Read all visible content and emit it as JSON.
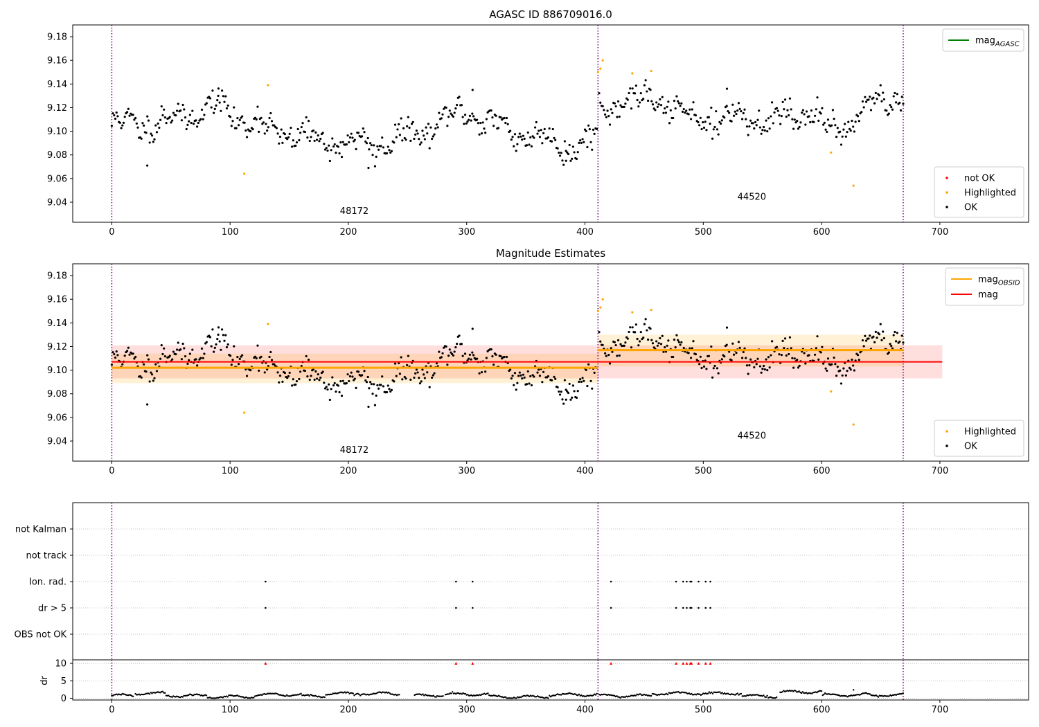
{
  "chart_data": [
    {
      "type": "scatter",
      "title": "AGASC ID 886709016.0",
      "xlabel": "",
      "ylabel": "",
      "xlim": [
        -33,
        775
      ],
      "ylim": [
        9.023,
        9.19
      ],
      "xticks": [
        0,
        100,
        200,
        300,
        400,
        500,
        600,
        700
      ],
      "xtick_labels": [
        "0",
        "100",
        "200",
        "300",
        "400",
        "500",
        "600",
        "700"
      ],
      "yticks": [
        9.04,
        9.06,
        9.08,
        9.1,
        9.12,
        9.14,
        9.16,
        9.18
      ],
      "ytick_labels": [
        "9.04",
        "9.06",
        "9.08",
        "9.10",
        "9.12",
        "9.14",
        "9.16",
        "9.18"
      ],
      "grid": false,
      "obs_boundaries": [
        0,
        411,
        669
      ],
      "obs_labels": [
        {
          "text": "48172",
          "x": 205,
          "y": 9.03
        },
        {
          "text": "44520",
          "x": 541,
          "y": 9.042
        }
      ],
      "legend_lines": [
        {
          "label": "mag",
          "sub": "AGASC",
          "color": "#008000"
        }
      ],
      "legend_lines_placement": "upper right",
      "legend_points": [
        {
          "label": "not OK",
          "color": "#ff0000"
        },
        {
          "label": "Highlighted",
          "color": "#ffa500"
        },
        {
          "label": "OK",
          "color": "#000000"
        }
      ],
      "legend_points_placement": "lower right",
      "ok_series": {
        "name": "OK",
        "color": "#000000",
        "segments": [
          {
            "x0": 0,
            "x1": 410,
            "n": 410,
            "anchors": [
              [
                0,
                9.106
              ],
              [
                40,
                9.107
              ],
              [
                90,
                9.122
              ],
              [
                110,
                9.11
              ],
              [
                140,
                9.1
              ],
              [
                180,
                9.092
              ],
              [
                220,
                9.088
              ],
              [
                260,
                9.098
              ],
              [
                300,
                9.118
              ],
              [
                330,
                9.102
              ],
              [
                370,
                9.093
              ],
              [
                390,
                9.085
              ],
              [
                410,
                9.097
              ]
            ],
            "sd": 0.009,
            "seed": 11
          },
          {
            "x0": 412,
            "x1": 669,
            "n": 256,
            "anchors": [
              [
                412,
                9.118
              ],
              [
                440,
                9.125
              ],
              [
                460,
                9.128
              ],
              [
                480,
                9.115
              ],
              [
                520,
                9.11
              ],
              [
                560,
                9.11
              ],
              [
                590,
                9.118
              ],
              [
                605,
                9.098
              ],
              [
                615,
                9.103
              ],
              [
                640,
                9.12
              ],
              [
                669,
                9.128
              ]
            ],
            "sd": 0.009,
            "seed": 29
          }
        ],
        "extra_points": [
          [
            30,
            9.071
          ],
          [
            217,
            9.069
          ],
          [
            384,
            9.075
          ],
          [
            305,
            9.135
          ],
          [
            90,
            9.13
          ],
          [
            520,
            9.136
          ]
        ]
      },
      "highlighted_points": [
        [
          112,
          9.064
        ],
        [
          132,
          9.139
        ],
        [
          411,
          9.15
        ],
        [
          413,
          9.153
        ],
        [
          415,
          9.16
        ],
        [
          440,
          9.149
        ],
        [
          456,
          9.151
        ],
        [
          608,
          9.082
        ],
        [
          627,
          9.054
        ]
      ]
    },
    {
      "type": "scatter",
      "title": "Magnitude Estimates",
      "xlabel": "",
      "ylabel": "",
      "xlim": [
        -33,
        775
      ],
      "ylim": [
        9.023,
        9.19
      ],
      "xticks": [
        0,
        100,
        200,
        300,
        400,
        500,
        600,
        700
      ],
      "xtick_labels": [
        "0",
        "100",
        "200",
        "300",
        "400",
        "500",
        "600",
        "700"
      ],
      "yticks": [
        9.04,
        9.06,
        9.08,
        9.1,
        9.12,
        9.14,
        9.16,
        9.18
      ],
      "ytick_labels": [
        "9.04",
        "9.06",
        "9.08",
        "9.10",
        "9.12",
        "9.14",
        "9.16",
        "9.18"
      ],
      "grid": false,
      "obs_boundaries": [
        0,
        411,
        669
      ],
      "obs_labels": [
        {
          "text": "48172",
          "x": 205,
          "y": 9.03
        },
        {
          "text": "44520",
          "x": 541,
          "y": 9.042
        }
      ],
      "mag": {
        "value": 9.107,
        "band": [
          9.093,
          9.121
        ],
        "x": [
          0,
          702
        ],
        "color": "#ff0000"
      },
      "mag_obsid": [
        {
          "value": 9.102,
          "band": [
            9.089,
            9.114
          ],
          "x": [
            0,
            411
          ]
        },
        {
          "value": 9.117,
          "band": [
            9.103,
            9.13
          ],
          "x": [
            411,
            669
          ]
        }
      ],
      "mag_obsid_color": "#ffa500",
      "legend_lines": [
        {
          "label": "mag",
          "sub": "OBSID",
          "color": "#ffa500"
        },
        {
          "label": "mag",
          "sub": "",
          "color": "#ff0000"
        }
      ],
      "legend_lines_placement": "upper right",
      "legend_points": [
        {
          "label": "Highlighted",
          "color": "#ffa500"
        },
        {
          "label": "OK",
          "color": "#000000"
        }
      ],
      "legend_points_placement": "lower right",
      "same_points_as_panel": 0
    },
    {
      "type": "scatter",
      "title": "",
      "xlim": [
        -33,
        775
      ],
      "flag_rows": [
        "not Kalman",
        "not track",
        "Ion. rad.",
        "dr > 5",
        "OBS not OK"
      ],
      "flag_points": {
        "Ion. rad.": [
          130,
          291,
          305,
          422,
          477,
          483,
          486,
          489,
          490,
          496,
          502,
          506
        ],
        "dr > 5": [
          130,
          291,
          305,
          422,
          477,
          483,
          486,
          489,
          490,
          496,
          502,
          506
        ]
      },
      "obs_boundaries": [
        0,
        411,
        669
      ],
      "grid": true
    },
    {
      "type": "scatter",
      "xlabel": "",
      "ylabel": "dr",
      "xlim": [
        -33,
        775
      ],
      "ylim": [
        -0.5,
        11
      ],
      "xticks": [
        0,
        100,
        200,
        300,
        400,
        500,
        600,
        700
      ],
      "xtick_labels": [
        "0",
        "100",
        "200",
        "300",
        "400",
        "500",
        "600",
        "700"
      ],
      "yticks": [
        0,
        5,
        10
      ],
      "ytick_labels": [
        "0",
        "5",
        "10"
      ],
      "grid": true,
      "obs_boundaries": [
        0,
        411,
        669
      ],
      "dr_segments": [
        {
          "x0": 0,
          "x1": 18,
          "mean": 0.8
        },
        {
          "x0": 20,
          "x1": 45,
          "mean": 1.4
        },
        {
          "x0": 46,
          "x1": 80,
          "mean": 0.7
        },
        {
          "x0": 81,
          "x1": 120,
          "mean": 0.4
        },
        {
          "x0": 121,
          "x1": 160,
          "mean": 1.0
        },
        {
          "x0": 161,
          "x1": 180,
          "mean": 0.6
        },
        {
          "x0": 181,
          "x1": 243,
          "mean": 1.3
        },
        {
          "x0": 256,
          "x1": 280,
          "mean": 0.8
        },
        {
          "x0": 282,
          "x1": 318,
          "mean": 1.1
        },
        {
          "x0": 319,
          "x1": 369,
          "mean": 0.4
        },
        {
          "x0": 370,
          "x1": 410,
          "mean": 1.0
        },
        {
          "x0": 412,
          "x1": 456,
          "mean": 0.7
        },
        {
          "x0": 457,
          "x1": 532,
          "mean": 1.4
        },
        {
          "x0": 533,
          "x1": 562,
          "mean": 0.6
        },
        {
          "x0": 565,
          "x1": 600,
          "mean": 1.8
        },
        {
          "x0": 601,
          "x1": 669,
          "mean": 0.9
        }
      ],
      "dr_extra": [
        [
          627,
          2.4
        ]
      ],
      "dr_clipped_x": [
        130,
        291,
        305,
        422,
        477,
        483,
        486,
        489,
        490,
        496,
        502,
        506
      ],
      "dr_clipped_value": 10,
      "dr_clipped_color": "#ff0000"
    }
  ]
}
